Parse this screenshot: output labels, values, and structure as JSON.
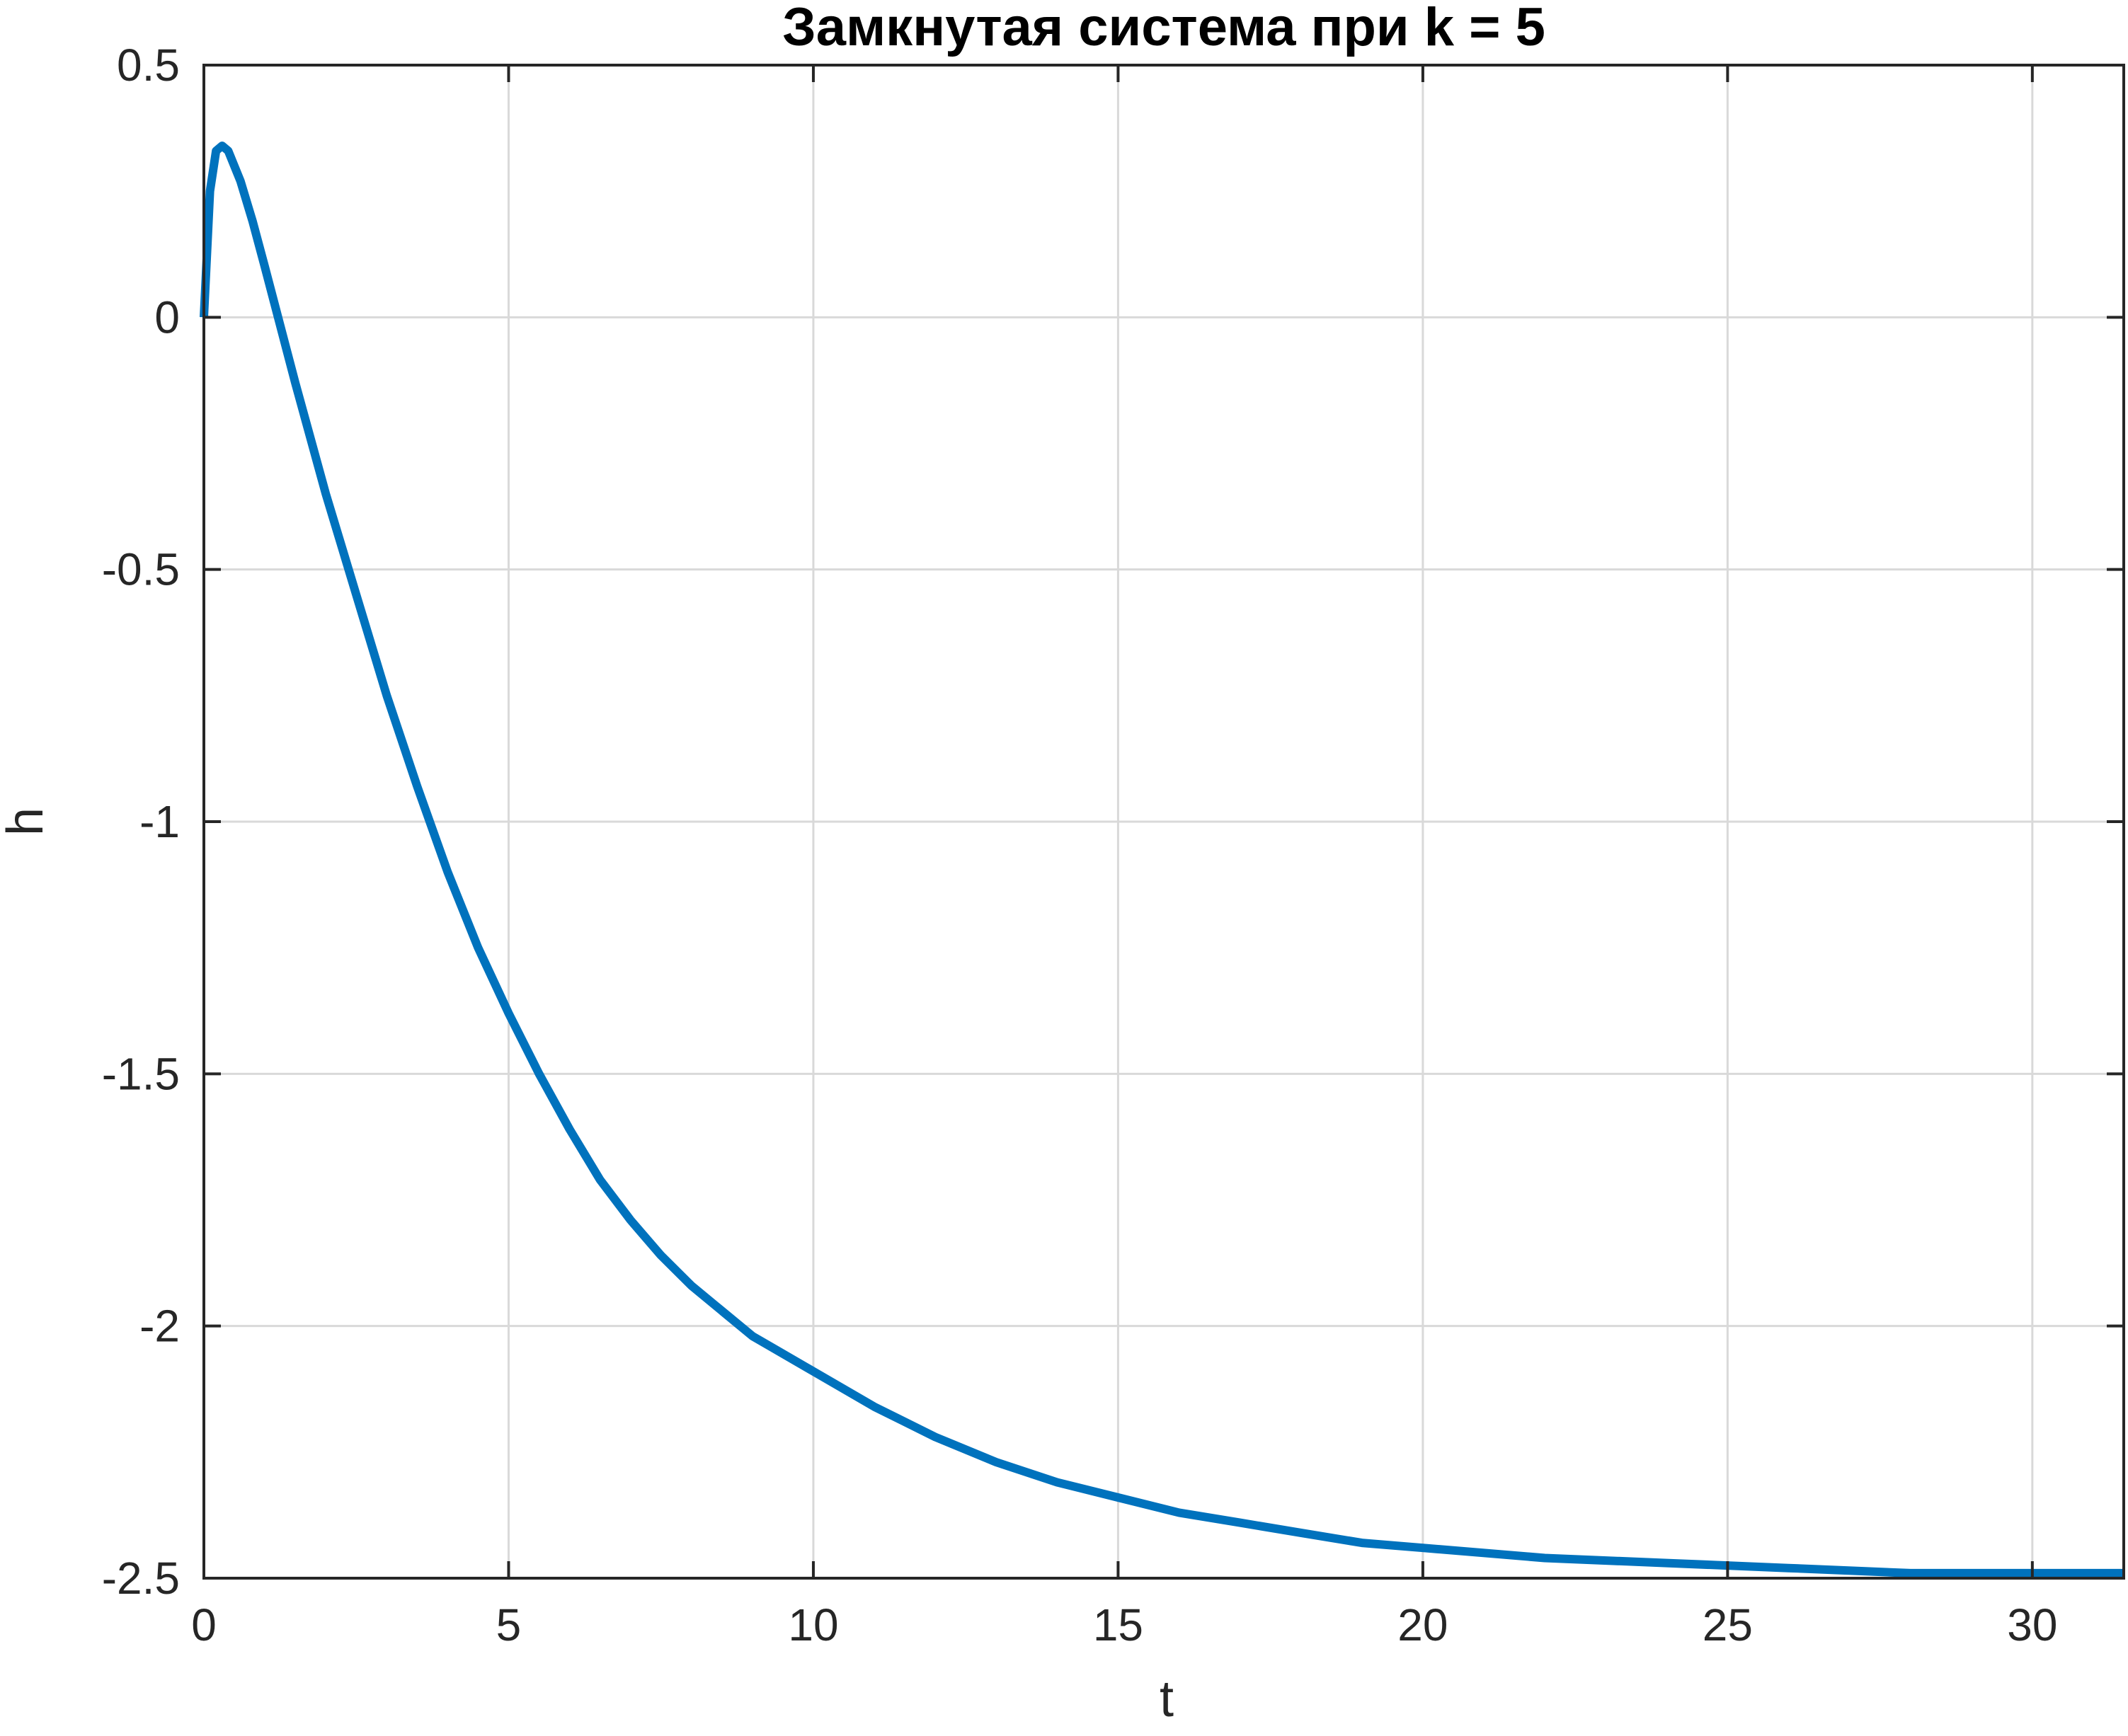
{
  "chart_data": {
    "type": "line",
    "title": "Замкнутая система при k = 5",
    "xlabel": "t",
    "ylabel": "h",
    "xlim": [
      0,
      31.5
    ],
    "ylim": [
      -2.5,
      0.5
    ],
    "xticks": [
      0,
      5,
      10,
      15,
      20,
      25,
      30
    ],
    "xtick_labels": [
      "0",
      "5",
      "10",
      "15",
      "20",
      "25",
      "30"
    ],
    "yticks": [
      0.5,
      0,
      -0.5,
      -1,
      -1.5,
      -2,
      -2.5
    ],
    "ytick_labels": [
      "0.5",
      "0",
      "-0.5",
      "-1",
      "-1.5",
      "-2",
      "-2.5"
    ],
    "grid": true,
    "legend": "none",
    "series": [
      {
        "color": "#0072bd",
        "x": [
          0,
          0.1,
          0.2,
          0.3,
          0.4,
          0.6,
          0.8,
          1.0,
          1.5,
          2.0,
          2.5,
          3.0,
          3.5,
          4.0,
          4.5,
          5.0,
          5.5,
          6.0,
          6.5,
          7.0,
          7.5,
          8.0,
          8.5,
          9.0,
          10.0,
          11.0,
          12.0,
          13.0,
          14.0,
          15.0,
          16.0,
          17.0,
          18.0,
          19.0,
          20.0,
          22.0,
          24.0,
          26.0,
          28.0,
          30.0,
          31.5
        ],
        "y": [
          0,
          0.25,
          0.33,
          0.34,
          0.33,
          0.27,
          0.19,
          0.1,
          -0.13,
          -0.35,
          -0.55,
          -0.75,
          -0.93,
          -1.1,
          -1.25,
          -1.38,
          -1.5,
          -1.61,
          -1.71,
          -1.79,
          -1.86,
          -1.92,
          -1.97,
          -2.02,
          -2.09,
          -2.16,
          -2.22,
          -2.27,
          -2.31,
          -2.34,
          -2.37,
          -2.39,
          -2.41,
          -2.43,
          -2.44,
          -2.46,
          -2.47,
          -2.48,
          -2.49,
          -2.49,
          -2.49
        ]
      }
    ]
  }
}
